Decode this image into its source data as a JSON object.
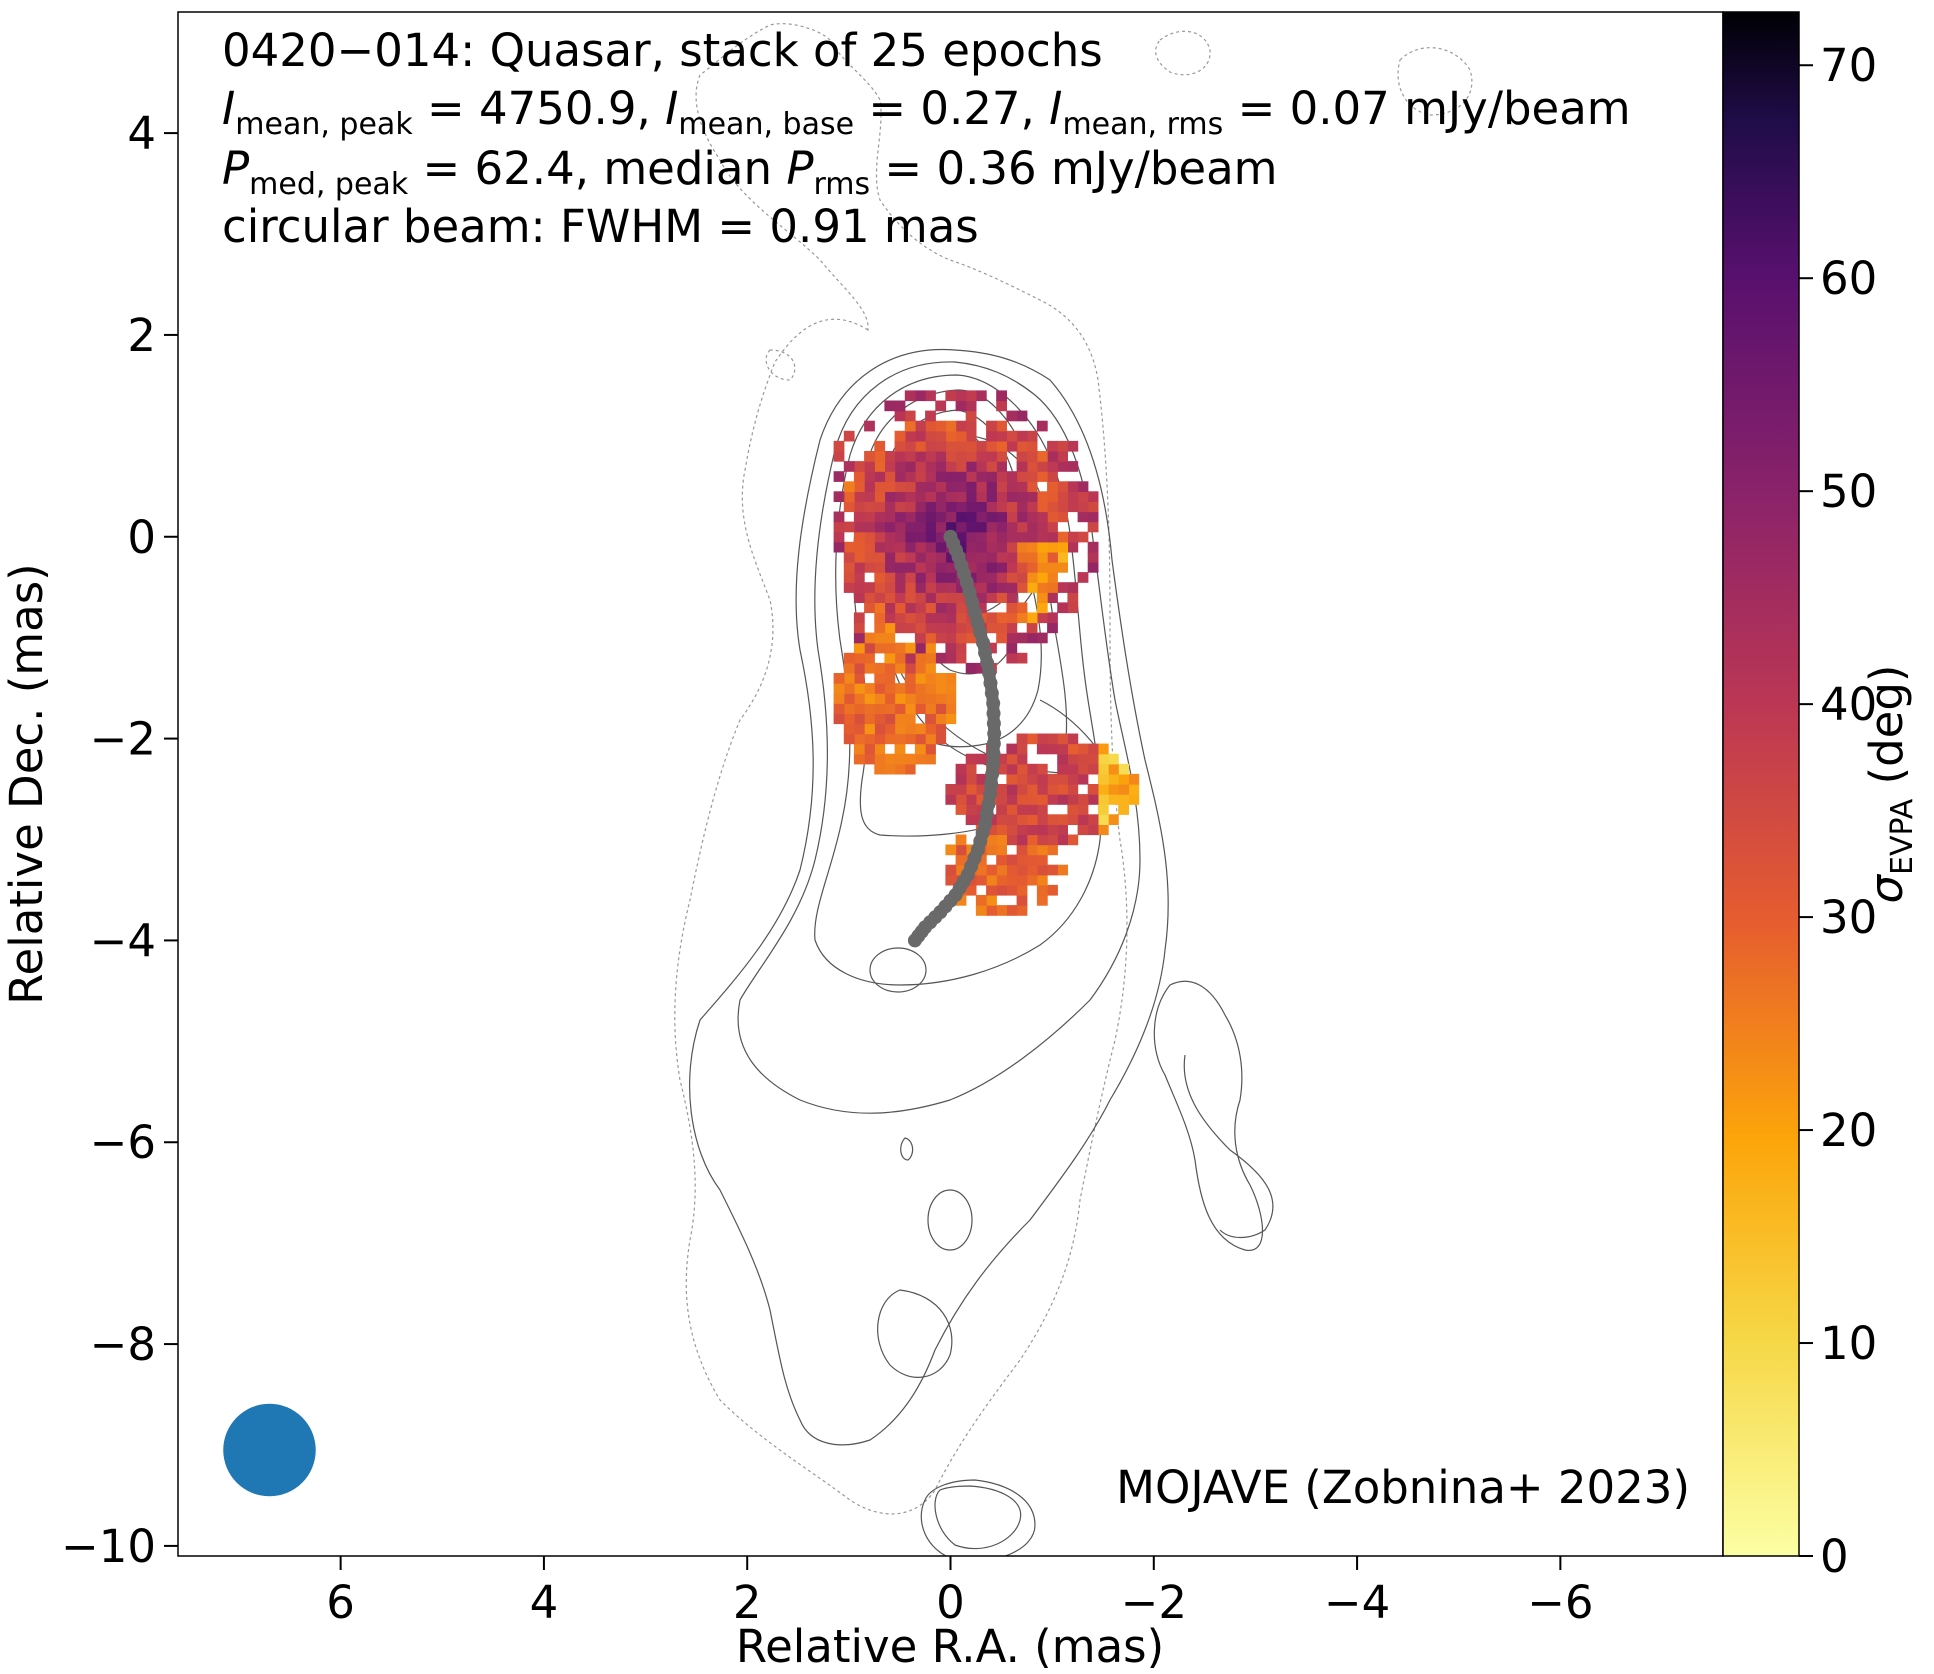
{
  "chart_data": {
    "type": "heatmap",
    "annotations": {
      "line1": "0420−014: Quasar, stack of 25 epochs",
      "line2": {
        "i_sym": "I",
        "i_peak_sub": "mean, peak",
        "i_peak_val": " = 4750.9, ",
        "i_base_sub": "mean, base",
        "i_base_val": " = 0.27, ",
        "i_rms_sub": "mean, rms",
        "i_rms_val": " = 0.07 mJy/beam"
      },
      "line3": {
        "p_sym": "P",
        "p_peak_sub": "med, peak",
        "p_peak_val": " = 62.4, median ",
        "p_rms_sub": "rms",
        "p_rms_val": " = 0.36 mJy/beam"
      },
      "line4": "circular beam: FWHM = 0.91 mas",
      "credit": "MOJAVE (Zobnina+ 2023)"
    },
    "xlabel": "Relative R.A. (mas)",
    "ylabel": "Relative Dec. (mas)",
    "colorbar_label": {
      "sym": "σ",
      "sub": "EVPA",
      "unit": " (deg)"
    },
    "xlim": [
      7.6,
      -7.6
    ],
    "ylim": [
      -10.1,
      5.2
    ],
    "xticks": [
      6,
      4,
      2,
      0,
      -2,
      -4,
      -6
    ],
    "xtick_labels": [
      "6",
      "4",
      "2",
      "0",
      "−2",
      "−4",
      "−6"
    ],
    "yticks": [
      4,
      2,
      0,
      -2,
      -4,
      -6,
      -8,
      -10
    ],
    "ytick_labels": [
      "4",
      "2",
      "0",
      "−2",
      "−4",
      "−6",
      "−8",
      "−10"
    ],
    "colorbar": {
      "range": [
        0,
        72.5
      ],
      "ticks": [
        0,
        10,
        20,
        30,
        40,
        50,
        60,
        70
      ],
      "tick_labels": [
        "0",
        "10",
        "20",
        "30",
        "40",
        "50",
        "60",
        "70"
      ],
      "colormap": "inferno_r"
    },
    "ridge_line": {
      "color": "#696969",
      "points": [
        [
          0,
          0
        ],
        [
          -0.08,
          -0.2
        ],
        [
          -0.16,
          -0.45
        ],
        [
          -0.24,
          -0.75
        ],
        [
          -0.32,
          -1.05
        ],
        [
          -0.38,
          -1.35
        ],
        [
          -0.42,
          -1.65
        ],
        [
          -0.43,
          -1.95
        ],
        [
          -0.42,
          -2.25
        ],
        [
          -0.39,
          -2.55
        ],
        [
          -0.34,
          -2.85
        ],
        [
          -0.27,
          -3.1
        ],
        [
          -0.17,
          -3.35
        ],
        [
          -0.05,
          -3.55
        ],
        [
          0.1,
          -3.72
        ],
        [
          0.25,
          -3.87
        ],
        [
          0.35,
          -4.0
        ]
      ]
    },
    "beam": {
      "x": 6.7,
      "y": -9.05,
      "fwhm": 0.91,
      "color": "#1f77b4"
    },
    "colors": {
      "contour": "#555555",
      "dotted_contour": "#999999"
    }
  }
}
